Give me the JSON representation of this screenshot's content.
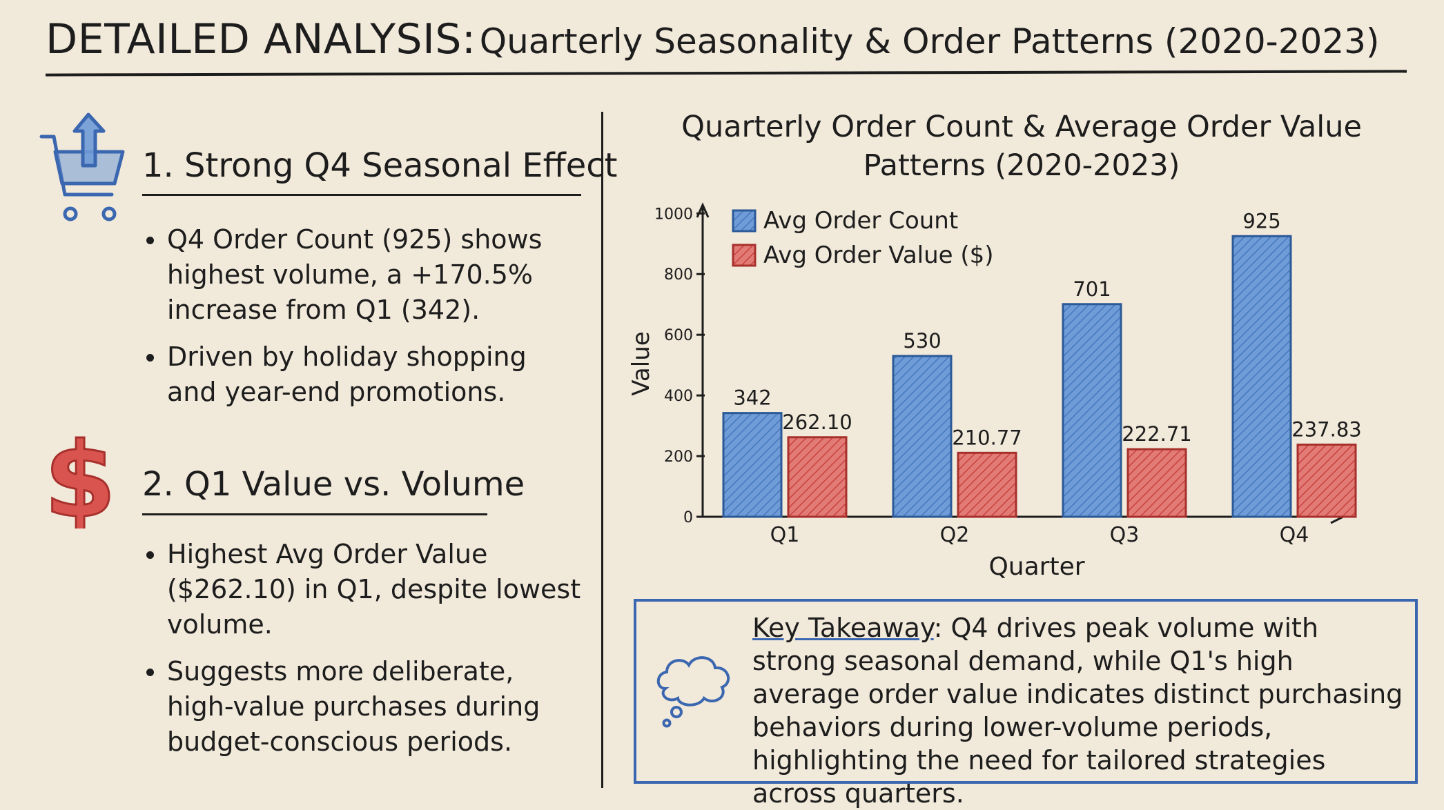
{
  "title": {
    "strong": "DETAILED ANALYSIS:",
    "rest": "Quarterly Seasonality & Order Patterns (2020-2023)"
  },
  "sections": [
    {
      "icon": "shopping-cart-up-arrow-icon",
      "heading": "1. Strong Q4 Seasonal Effect",
      "bullets": [
        "Q4 Order Count (925) shows highest volume, a +170.5% increase from Q1 (342).",
        "Driven by holiday shopping and year-end promotions."
      ]
    },
    {
      "icon": "dollar-sign-icon",
      "heading": "2. Q1 Value vs. Volume",
      "bullets": [
        "Highest Avg Order Value ($262.10) in Q1, despite lowest volume.",
        "Suggests more deliberate, high-value purchases during budget-conscious periods."
      ]
    }
  ],
  "takeaway": {
    "label": "Key Takeaway",
    "text": ": Q4 drives peak volume with strong seasonal demand, while Q1's high average order value indicates distinct purchasing behaviors during lower-volume periods, highlighting the need for tailored strategies across quarters.",
    "icon": "thought-cloud-icon"
  },
  "colors": {
    "blue": "#4f86cc",
    "blue_dark": "#2c5a98",
    "red": "#d9544f",
    "red_dark": "#a8302c",
    "ink": "#1d1d1d"
  },
  "chart_data": {
    "type": "bar",
    "title": "Quarterly Order Count & Average Order Value Patterns (2020-2023)",
    "xlabel": "Quarter",
    "ylabel": "Value",
    "categories": [
      "Q1",
      "Q2",
      "Q3",
      "Q4"
    ],
    "series": [
      {
        "name": "Avg Order Count",
        "values": [
          342,
          530,
          701,
          925
        ],
        "labels": [
          "342",
          "530",
          "701",
          "925"
        ],
        "color": "#4f86cc"
      },
      {
        "name": "Avg Order Value ($)",
        "values": [
          262.1,
          210.77,
          222.71,
          237.83
        ],
        "labels": [
          "262.10",
          "210.77",
          "222.71",
          "237.83"
        ],
        "color": "#d9544f"
      }
    ],
    "ylim": [
      0,
      1000
    ],
    "yticks": [
      0,
      200,
      400,
      600,
      800,
      1000
    ],
    "legend": "top-left",
    "grid": false
  }
}
